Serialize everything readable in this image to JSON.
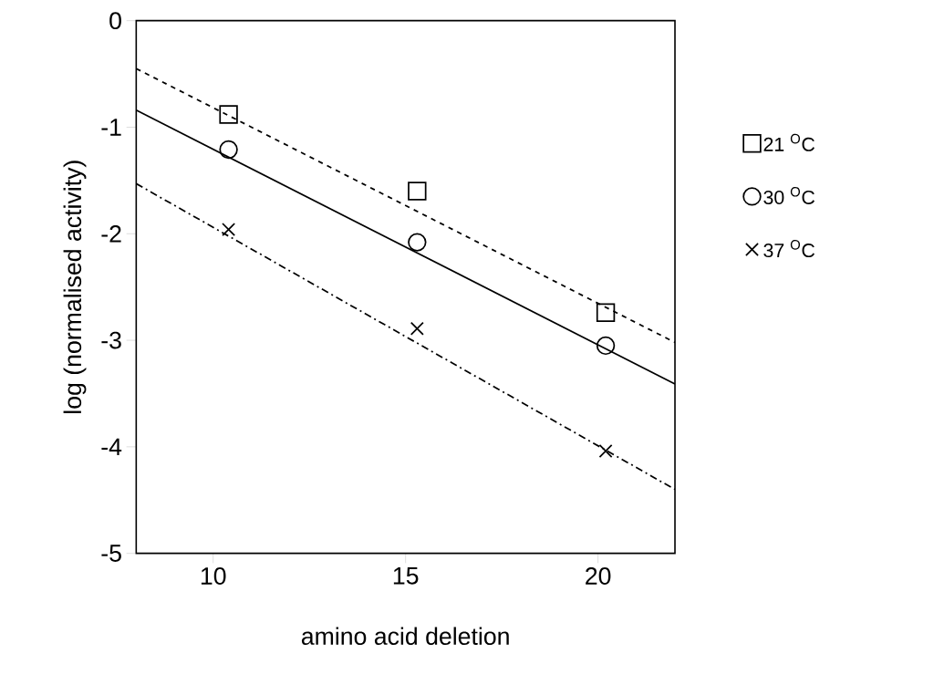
{
  "chart_data": {
    "type": "scatter",
    "xlabel": "amino acid deletion",
    "ylabel": "log (normalised activity)",
    "xlim": [
      8,
      22
    ],
    "ylim": [
      -5,
      0
    ],
    "xticks": [
      10,
      15,
      20
    ],
    "yticks": [
      -5,
      -4,
      -3,
      -2,
      -1,
      0
    ],
    "grid": false,
    "legend": "right",
    "series": [
      {
        "name": "21 $^{O}$C",
        "marker": "square",
        "color": "#000000",
        "x": [
          10.4,
          15.3,
          20.2
        ],
        "values": [
          -0.88,
          -1.6,
          -2.74
        ]
      },
      {
        "name": "30 $^{O}$C",
        "marker": "circle",
        "color": "#000000",
        "x": [
          10.4,
          15.3,
          20.2
        ],
        "values": [
          -1.21,
          -2.08,
          -3.05
        ]
      },
      {
        "name": "37 $^{O}$C",
        "marker": "cross",
        "color": "#000000",
        "x": [
          10.4,
          15.3,
          20.2
        ],
        "values": [
          -1.96,
          -2.89,
          -4.04
        ]
      },
      {
        "type": "line",
        "line_style": "dashed",
        "color": "#000000",
        "x": [
          8,
          22
        ],
        "values": [
          -0.45,
          -3.02
        ]
      },
      {
        "type": "line",
        "line_style": "solid",
        "color": "#000000",
        "x": [
          8,
          22
        ],
        "values": [
          -0.84,
          -3.41
        ]
      },
      {
        "type": "line",
        "line_style": "dashdot",
        "color": "#000000",
        "x": [
          8,
          22
        ],
        "values": [
          -1.53,
          -4.4
        ]
      }
    ]
  }
}
